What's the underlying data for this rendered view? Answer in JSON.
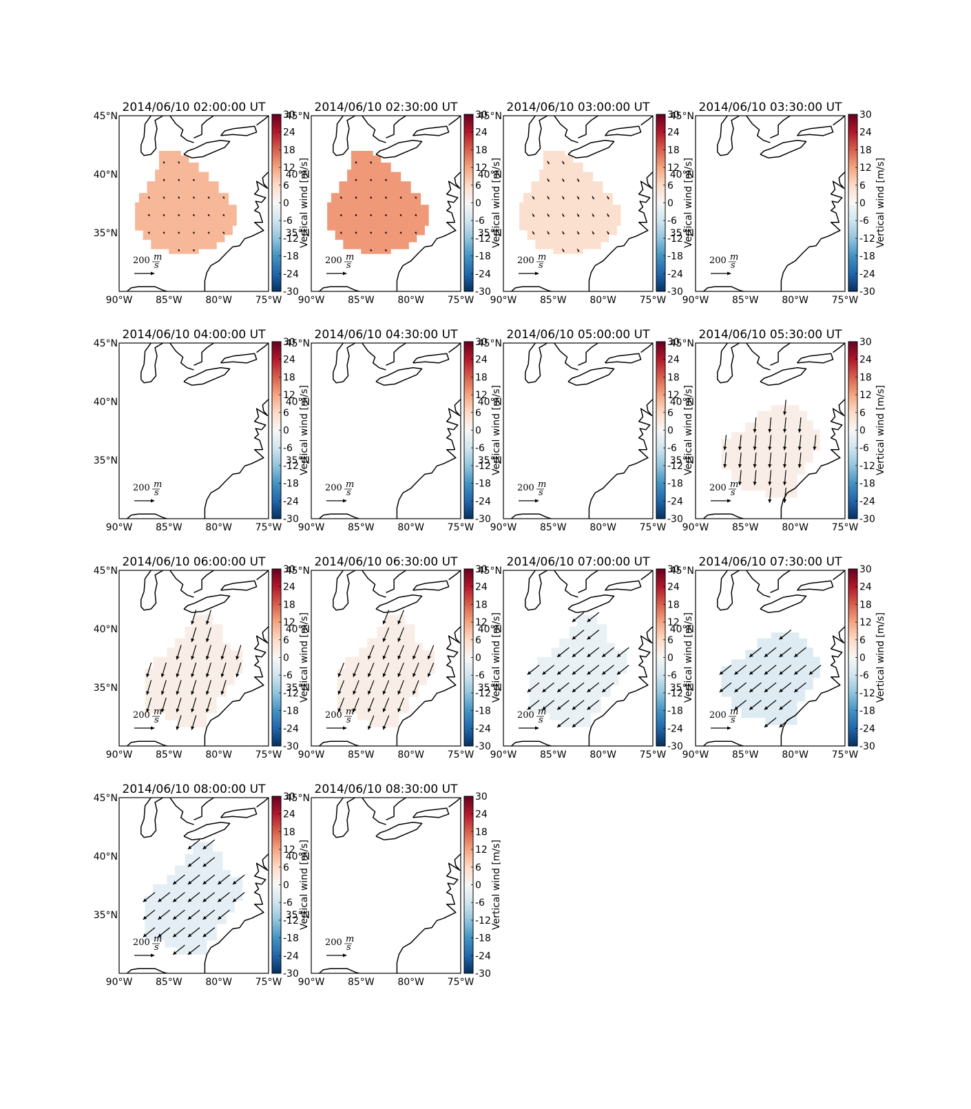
{
  "figure": {
    "domain_note": "Vertical wind panels over eastern US",
    "colorbar_label": "Vertical wind [m/s]",
    "colorbar_ticks": [
      30,
      24,
      18,
      12,
      6,
      0,
      -6,
      -12,
      -18,
      -24,
      -30
    ],
    "colorbar_range": [
      -30,
      30
    ],
    "colormap": [
      "#67001f",
      "#b2182b",
      "#d6604d",
      "#f4a582",
      "#fddbc7",
      "#f7f7f7",
      "#d1e5f0",
      "#92c5de",
      "#4393c3",
      "#2166ac",
      "#053061"
    ],
    "quiver_key": {
      "value": "200",
      "unit_num": "m",
      "unit_den": "s"
    },
    "x_ticks": [
      "90°W",
      "85°W",
      "80°W",
      "75°W"
    ],
    "x_tick_values": [
      -90,
      -85,
      -80,
      -75
    ],
    "y_ticks": [
      "45°N",
      "40°N",
      "35°N"
    ],
    "y_tick_values": [
      45,
      40,
      35
    ],
    "lon_range": [
      -90,
      -75
    ],
    "lat_range": [
      30,
      45
    ]
  },
  "chart_data": [
    {
      "type": "heatmap",
      "title": "2014/06/10 02:00:00 UT",
      "vertical_wind": 10,
      "u": 0.5,
      "v": -1,
      "arrow_scale": 0.12,
      "region": "A"
    },
    {
      "type": "heatmap",
      "title": "2014/06/10 02:30:00 UT",
      "vertical_wind": 13,
      "u": 0.6,
      "v": -1,
      "arrow_scale": 0.12,
      "region": "A"
    },
    {
      "type": "heatmap",
      "title": "2014/06/10 03:00:00 UT",
      "vertical_wind": 5,
      "u": 0.6,
      "v": -1,
      "arrow_scale": 0.2,
      "region": "A"
    },
    {
      "type": "heatmap",
      "title": "2014/06/10 03:30:00 UT",
      "vertical_wind": null,
      "region": "none"
    },
    {
      "type": "heatmap",
      "title": "2014/06/10 04:00:00 UT",
      "vertical_wind": null,
      "region": "none"
    },
    {
      "type": "heatmap",
      "title": "2014/06/10 04:30:00 UT",
      "vertical_wind": null,
      "region": "none"
    },
    {
      "type": "heatmap",
      "title": "2014/06/10 05:00:00 UT",
      "vertical_wind": null,
      "region": "none"
    },
    {
      "type": "heatmap",
      "title": "2014/06/10 05:30:00 UT",
      "vertical_wind": 2,
      "u": -0.1,
      "v": -1,
      "arrow_scale": 0.85,
      "region": "B"
    },
    {
      "type": "heatmap",
      "title": "2014/06/10 06:00:00 UT",
      "vertical_wind": 2,
      "u": -0.3,
      "v": -1,
      "arrow_scale": 0.85,
      "region": "C"
    },
    {
      "type": "heatmap",
      "title": "2014/06/10 06:30:00 UT",
      "vertical_wind": 2,
      "u": -0.4,
      "v": -1,
      "arrow_scale": 0.85,
      "region": "C"
    },
    {
      "type": "heatmap",
      "title": "2014/06/10 07:00:00 UT",
      "vertical_wind": -2,
      "u": -1,
      "v": -0.8,
      "arrow_scale": 0.85,
      "region": "C"
    },
    {
      "type": "heatmap",
      "title": "2014/06/10 07:30:00 UT",
      "vertical_wind": -4,
      "u": -1,
      "v": -0.8,
      "arrow_scale": 0.85,
      "region": "B"
    },
    {
      "type": "heatmap",
      "title": "2014/06/10 08:00:00 UT",
      "vertical_wind": -3,
      "u": -1,
      "v": -0.8,
      "arrow_scale": 0.85,
      "region": "C"
    },
    {
      "type": "heatmap",
      "title": "2014/06/10 08:30:00 UT",
      "vertical_wind": null,
      "region": "none"
    }
  ]
}
